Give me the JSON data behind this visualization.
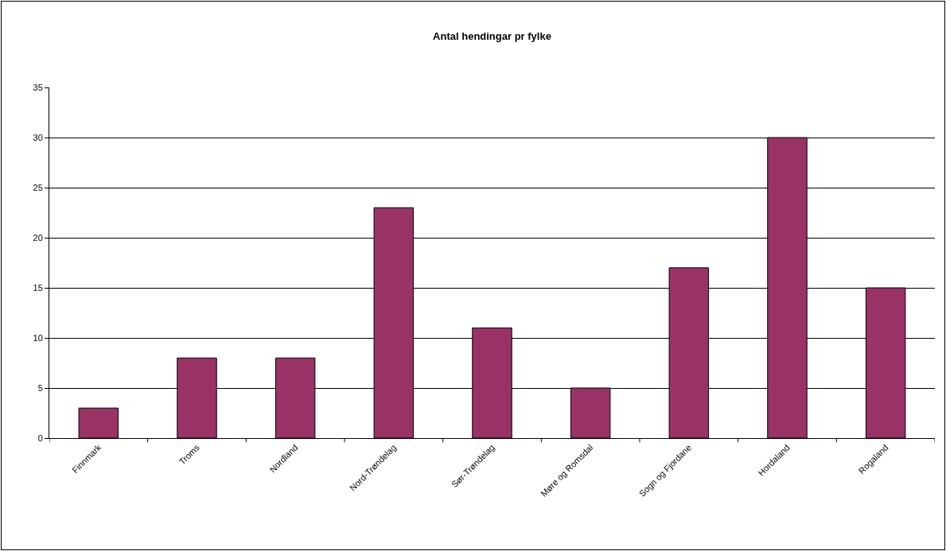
{
  "chart_data": {
    "type": "bar",
    "title": "Antal hendingar pr fylke",
    "categories": [
      "Finnmark",
      "Troms",
      "Nordland",
      "Nord-Trøndelag",
      "Sør-Trøndelag",
      "Møre og Romsdal",
      "Sogn og Fjordane",
      "Hordaland",
      "Rogaland"
    ],
    "values": [
      3,
      8,
      8,
      23,
      11,
      5,
      17,
      30,
      15
    ],
    "color": "#993366",
    "ylim": [
      0,
      35
    ],
    "yticks": [
      0,
      5,
      10,
      15,
      20,
      25,
      30,
      35
    ],
    "grid": "y"
  }
}
